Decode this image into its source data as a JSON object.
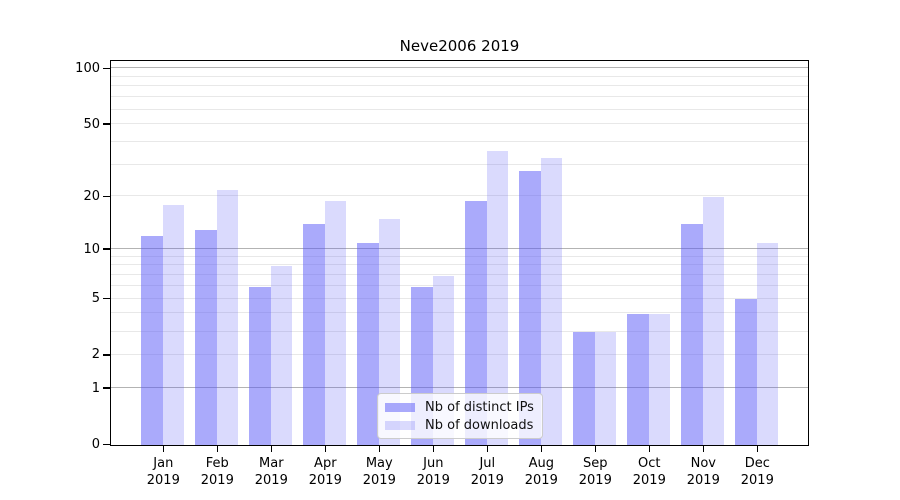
{
  "title": "Neve2006 2019",
  "chart_data": {
    "type": "bar",
    "title": "Neve2006 2019",
    "categories": [
      "Jan",
      "Feb",
      "Mar",
      "Apr",
      "May",
      "Jun",
      "Jul",
      "Aug",
      "Sep",
      "Oct",
      "Nov",
      "Dec"
    ],
    "category_year": "2019",
    "series": [
      {
        "name": "Nb of distinct IPs",
        "color": "rgba(85,85,247,0.5)",
        "values": [
          12,
          13,
          6,
          14,
          11,
          6,
          19,
          28,
          3,
          4,
          14,
          5
        ]
      },
      {
        "name": "Nb of downloads",
        "color": "rgba(85,85,247,0.22)",
        "values": [
          18,
          22,
          8,
          19,
          15,
          7,
          36,
          33,
          3,
          4,
          20,
          11
        ]
      }
    ],
    "y_axis": {
      "scale": "log10(value+1)",
      "tick_labels": [
        100,
        50,
        20,
        10,
        5,
        2,
        1,
        0
      ],
      "minor_gridlines": [
        2,
        3,
        4,
        5,
        6,
        7,
        8,
        9,
        20,
        30,
        40,
        50,
        60,
        70,
        80,
        90
      ],
      "emphasized_gridlines": [
        1,
        10,
        100
      ],
      "ylim": [
        0,
        113
      ]
    },
    "legend_position": "lower center",
    "grid": "on"
  },
  "colors": {
    "bar_base": "#5555f7",
    "grid_minor": "#e8e8e8",
    "grid_major": "#b3b3b3",
    "spine": "#000000",
    "legend_border": "#cccccc"
  }
}
